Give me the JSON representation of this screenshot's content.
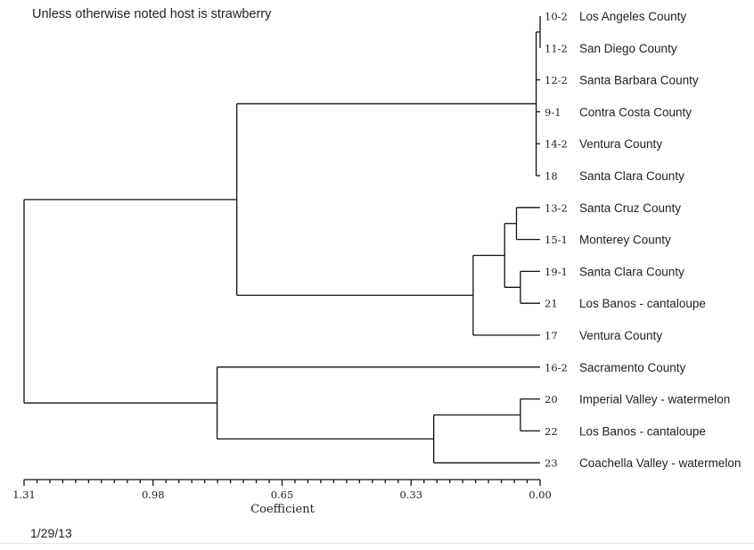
{
  "note": "Unless otherwise noted host is strawberry",
  "date": "1/29/13",
  "axis": {
    "title": "Coefficient",
    "ticks": [
      "1.31",
      "0.98",
      "0.65",
      "0.33",
      "0.00"
    ]
  },
  "leaves": [
    {
      "id": "10-2",
      "label": "Los Angeles County"
    },
    {
      "id": "11-2",
      "label": "San Diego County"
    },
    {
      "id": "12-2",
      "label": "Santa Barbara County"
    },
    {
      "id": "9-1",
      "label": "Contra Costa County"
    },
    {
      "id": "14-2",
      "label": "Ventura County"
    },
    {
      "id": "18",
      "label": "Santa Clara County"
    },
    {
      "id": "13-2",
      "label": "Santa Cruz County"
    },
    {
      "id": "15-1",
      "label": "Monterey County"
    },
    {
      "id": "19-1",
      "label": "Santa Clara County"
    },
    {
      "id": "21",
      "label": "Los Banos - cantaloupe"
    },
    {
      "id": "17",
      "label": "Ventura County"
    },
    {
      "id": "16-2",
      "label": "Sacramento County"
    },
    {
      "id": "20",
      "label": "Imperial Valley - watermelon"
    },
    {
      "id": "22",
      "label": "Los Banos - cantaloupe"
    },
    {
      "id": "23",
      "label": "Coachella Valley - watermelon"
    }
  ],
  "tree": {
    "h": 1.31,
    "children": [
      {
        "h": 0.77,
        "children": [
          {
            "h": 0.01,
            "children": [
              {
                "h": 0.0,
                "children": [
                  {
                    "leaf": 0
                  },
                  {
                    "leaf": 1
                  }
                ]
              },
              {
                "leaf": 2
              },
              {
                "leaf": 3
              },
              {
                "leaf": 4
              },
              {
                "leaf": 5
              }
            ]
          },
          {
            "h": 0.37,
            "children": [
              {
                "h": 0.17,
                "children": [
                  {
                    "h": 0.09,
                    "children": [
                      {
                        "h": 0.06,
                        "children": [
                          {
                            "leaf": 6
                          },
                          {
                            "leaf": 7
                          }
                        ]
                      },
                      {
                        "h": 0.05,
                        "children": [
                          {
                            "leaf": 8
                          },
                          {
                            "leaf": 9
                          }
                        ]
                      }
                    ]
                  },
                  {
                    "leaf": 10
                  }
                ]
              }
            ]
          }
        ]
      },
      {
        "h": 0.82,
        "children": [
          {
            "leaf": 11
          },
          {
            "h": 0.27,
            "children": [
              {
                "h": 0.05,
                "children": [
                  {
                    "leaf": 12
                  },
                  {
                    "leaf": 13
                  }
                ]
              },
              {
                "leaf": 14
              }
            ]
          }
        ]
      }
    ]
  }
}
